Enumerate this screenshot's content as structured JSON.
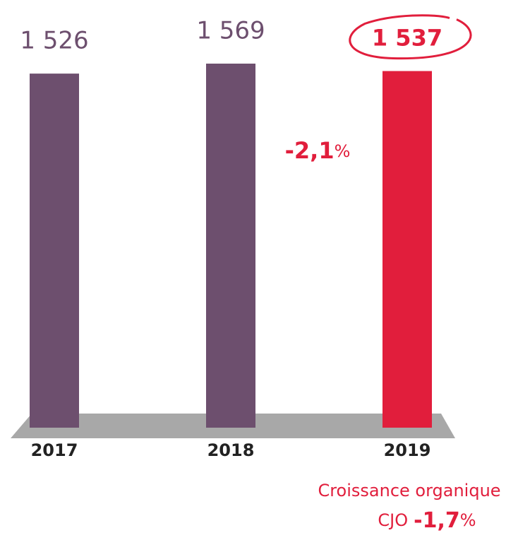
{
  "chart_data": {
    "type": "bar",
    "categories": [
      "2017",
      "2018",
      "2019"
    ],
    "values": [
      1526,
      1569,
      1537
    ],
    "value_labels": [
      "1 526",
      "1 569",
      "1 537"
    ],
    "colors": [
      "#6d4f6e",
      "#6d4f6e",
      "#e11e3c"
    ],
    "highlight": 2,
    "annotations": [
      {
        "text": "-2,1",
        "suffix": "%"
      },
      {
        "line1": "Croissance organique",
        "prefix": "CJO",
        "text": "-1,7",
        "suffix": "%"
      }
    ]
  }
}
